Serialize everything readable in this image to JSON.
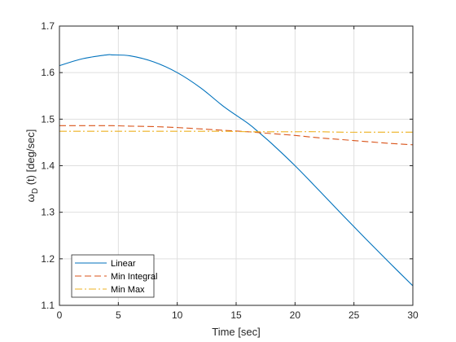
{
  "chart_data": {
    "type": "line",
    "xlabel": "Time [sec]",
    "ylabel_main": "ω",
    "ylabel_sub": "D",
    "ylabel_rest": " (t) [deg/sec]",
    "xlim": [
      0,
      30
    ],
    "ylim": [
      1.1,
      1.7
    ],
    "xticks": [
      0,
      5,
      10,
      15,
      20,
      25,
      30
    ],
    "yticks": [
      1.1,
      1.2,
      1.3,
      1.4,
      1.5,
      1.6,
      1.7
    ],
    "grid": true,
    "legend_location": "bottom-left",
    "x": [
      0,
      2,
      4,
      4.5,
      6,
      8,
      10,
      12,
      14,
      16,
      17,
      18,
      20,
      22,
      24,
      26,
      28,
      30
    ],
    "series": [
      {
        "name": "Linear",
        "color": "#0072BD",
        "dash": "",
        "values": [
          1.615,
          1.63,
          1.638,
          1.638,
          1.636,
          1.623,
          1.6,
          1.567,
          1.526,
          1.491,
          1.47,
          1.448,
          1.4,
          1.348,
          1.295,
          1.243,
          1.192,
          1.142
        ]
      },
      {
        "name": "Min Integral",
        "color": "#D95319",
        "dash": "8,4",
        "values": [
          1.486,
          1.486,
          1.486,
          1.486,
          1.485,
          1.484,
          1.482,
          1.479,
          1.476,
          1.473,
          1.471,
          1.469,
          1.465,
          1.46,
          1.456,
          1.452,
          1.448,
          1.445
        ]
      },
      {
        "name": "Min Max",
        "color": "#EDB120",
        "dash": "9,3,2,3",
        "values": [
          1.474,
          1.474,
          1.474,
          1.474,
          1.474,
          1.474,
          1.474,
          1.474,
          1.474,
          1.473,
          1.473,
          1.473,
          1.473,
          1.473,
          1.472,
          1.472,
          1.472,
          1.472
        ]
      }
    ]
  }
}
